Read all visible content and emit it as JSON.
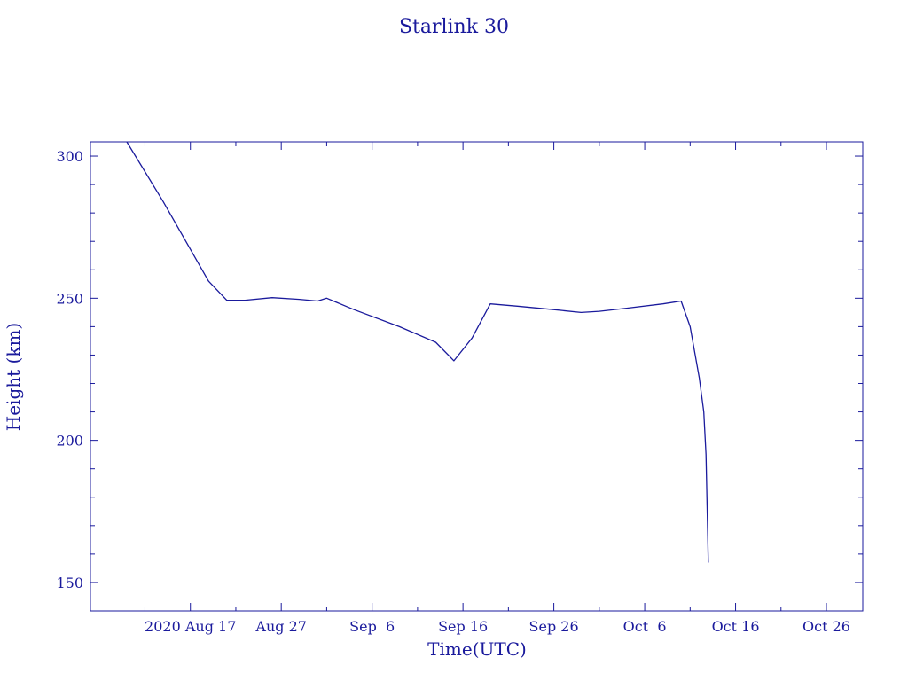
{
  "chart_data": {
    "type": "line",
    "title": "Starlink 30",
    "xlabel": "Time(UTC)",
    "ylabel": "Height (km)",
    "xlim": [
      "2020-08-06",
      "2020-10-30"
    ],
    "ylim": [
      140,
      305
    ],
    "x_ticks": [
      {
        "date": "2020-08-17",
        "label": "2020 Aug 17"
      },
      {
        "date": "2020-08-27",
        "label": "Aug 27"
      },
      {
        "date": "2020-09-06",
        "label": "Sep  6"
      },
      {
        "date": "2020-09-16",
        "label": "Sep 16"
      },
      {
        "date": "2020-09-26",
        "label": "Sep 26"
      },
      {
        "date": "2020-10-06",
        "label": "Oct  6"
      },
      {
        "date": "2020-10-16",
        "label": "Oct 16"
      },
      {
        "date": "2020-10-26",
        "label": "Oct 26"
      }
    ],
    "x_minor_ticks": [
      "2020-08-12",
      "2020-08-22",
      "2020-09-01",
      "2020-09-11",
      "2020-09-21",
      "2020-10-01",
      "2020-10-11",
      "2020-10-21"
    ],
    "y_ticks": [
      150,
      200,
      250,
      300
    ],
    "y_minor_tick_step": 10,
    "grid": false,
    "series": [
      {
        "color": "#1a1a9c",
        "points": [
          {
            "x": "2020-08-10",
            "y": 305.0
          },
          {
            "x": "2020-08-14",
            "y": 284.0
          },
          {
            "x": "2020-08-19",
            "y": 256.0
          },
          {
            "x": "2020-08-21",
            "y": 249.3
          },
          {
            "x": "2020-08-23",
            "y": 249.3
          },
          {
            "x": "2020-08-26",
            "y": 250.2
          },
          {
            "x": "2020-08-29",
            "y": 249.6
          },
          {
            "x": "2020-08-31",
            "y": 249.0
          },
          {
            "x": "2020-09-01",
            "y": 250.0
          },
          {
            "x": "2020-09-04",
            "y": 246.0
          },
          {
            "x": "2020-09-09",
            "y": 240.0
          },
          {
            "x": "2020-09-13",
            "y": 234.5
          },
          {
            "x": "2020-09-15",
            "y": 228.0
          },
          {
            "x": "2020-09-17",
            "y": 236.0
          },
          {
            "x": "2020-09-19",
            "y": 248.0
          },
          {
            "x": "2020-09-22",
            "y": 247.2
          },
          {
            "x": "2020-09-26",
            "y": 246.0
          },
          {
            "x": "2020-09-29",
            "y": 245.0
          },
          {
            "x": "2020-10-01",
            "y": 245.4
          },
          {
            "x": "2020-10-04",
            "y": 246.5
          },
          {
            "x": "2020-10-08",
            "y": 248.0
          },
          {
            "x": "2020-10-10",
            "y": 249.0
          },
          {
            "x": "2020-10-11",
            "y": 240.0
          },
          {
            "x": "2020-10-12",
            "y": 222.0
          },
          {
            "x": "2020-10-12 12:00",
            "y": 210.0
          },
          {
            "x": "2020-10-12 18:00",
            "y": 195.0
          },
          {
            "x": "2020-10-13",
            "y": 157.0
          }
        ]
      }
    ]
  }
}
